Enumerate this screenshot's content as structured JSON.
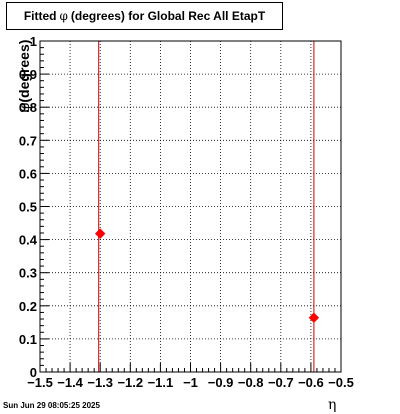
{
  "chart_data": {
    "type": "scatter",
    "title_prefix": "Fitted",
    "title_symbol": "φ",
    "title_suffix": "(degrees) for Global Rec All EtapT",
    "ylabel_symbol": "φ",
    "ylabel_text": "(degrees)",
    "xlabel": "η",
    "xlim": [
      -1.5,
      -0.5
    ],
    "ylim": [
      0,
      1
    ],
    "grid": true,
    "x_ticks": [
      "−1.5",
      "−1.4",
      "−1.3",
      "−1.2",
      "−1.1",
      "−1",
      "−0.9",
      "−0.8",
      "−0.7",
      "−0.6",
      "−0.5"
    ],
    "x_tick_values": [
      -1.5,
      -1.4,
      -1.3,
      -1.2,
      -1.1,
      -1.0,
      -0.9,
      -0.8,
      -0.7,
      -0.6,
      -0.5
    ],
    "y_ticks": [
      "0",
      "0.1",
      "0.2",
      "0.3",
      "0.4",
      "0.5",
      "0.6",
      "0.7",
      "0.8",
      "0.9",
      "1"
    ],
    "y_tick_values": [
      0,
      0.1,
      0.2,
      0.3,
      0.4,
      0.5,
      0.6,
      0.7,
      0.8,
      0.9,
      1.0
    ],
    "points": [
      {
        "x": -1.3,
        "y": 0.418
      },
      {
        "x": -0.59,
        "y": 0.164
      }
    ],
    "vertical_lines": [
      -1.305,
      -0.59
    ],
    "marker_color": "#ff0000",
    "line_color": "#cc0000"
  },
  "footer": {
    "timestamp": "Sun Jun 29 08:05:25 2025"
  }
}
